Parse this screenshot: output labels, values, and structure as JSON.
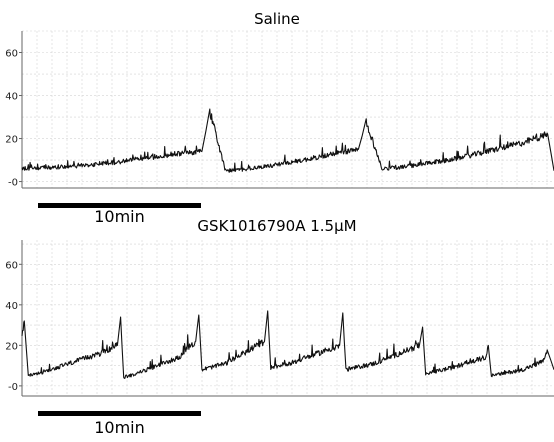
{
  "chart_data": [
    {
      "type": "line",
      "title": "Saline",
      "xlabel": "",
      "ylabel": "",
      "ylim": [
        -3,
        70
      ],
      "yticks": [
        0,
        20,
        40,
        60
      ],
      "ytick_labels": [
        "-0",
        "20",
        "40",
        "60"
      ],
      "xlim": [
        0,
        34
      ],
      "grid": true,
      "series": [
        {
          "x": [
            0,
            2,
            4,
            6,
            8,
            10,
            11.5,
            12,
            13,
            14,
            16,
            18,
            20,
            21.5,
            22,
            23,
            24,
            26,
            28,
            30,
            32,
            33.6,
            34
          ],
          "y": [
            6,
            6.5,
            7.5,
            9,
            11,
            13,
            14,
            33,
            5,
            5.5,
            7.5,
            10,
            13,
            15,
            28,
            6,
            6.5,
            8.5,
            11,
            14.5,
            18,
            22,
            5
          ]
        }
      ],
      "scale_bar": "10min"
    },
    {
      "type": "line",
      "title": "GSK1016790A 1.5µM",
      "xlabel": "",
      "ylabel": "",
      "ylim": [
        -5,
        72
      ],
      "yticks": [
        0,
        20,
        40,
        60
      ],
      "ytick_labels": [
        "-0",
        "20",
        "40",
        "60"
      ],
      "xlim": [
        0,
        34
      ],
      "grid": true,
      "series": [
        {
          "x": [
            0,
            0.15,
            0.4,
            1,
            3,
            5,
            6.1,
            6.3,
            6.5,
            8,
            10,
            11.1,
            11.3,
            11.5,
            13,
            15.5,
            15.7,
            15.9,
            17.5,
            20.3,
            20.5,
            20.7,
            22.5,
            25.4,
            25.6,
            25.8,
            27.5,
            29.6,
            29.8,
            30,
            32,
            33.3,
            33.6,
            34
          ],
          "y": [
            24,
            32,
            5,
            6,
            11,
            16,
            20,
            34,
            4,
            8,
            14,
            22,
            35,
            8,
            11,
            22,
            37,
            9,
            12,
            20,
            36,
            8,
            11,
            20,
            29,
            6,
            9,
            14,
            20,
            5,
            8,
            12,
            17,
            8
          ]
        }
      ],
      "scale_bar": "10min"
    }
  ]
}
